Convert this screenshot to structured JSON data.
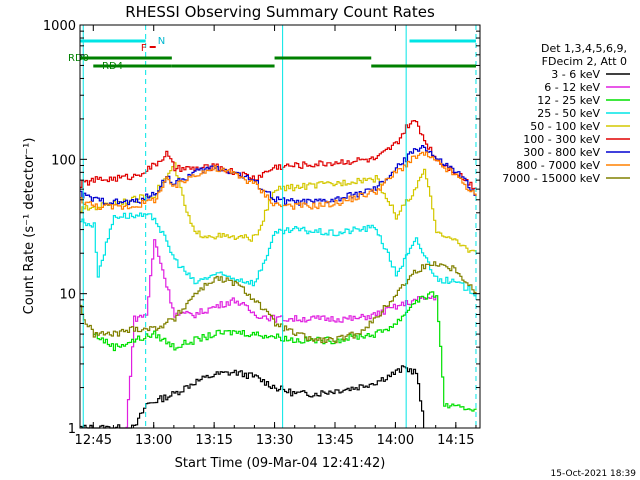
{
  "chart_data": {
    "type": "line",
    "title": "RHESSI Observing Summary Count Rates",
    "xlabel": "Start Time (09-Mar-04 12:41:42)",
    "ylabel": "Count Rate (s⁻¹ detector⁻¹)",
    "yscale": "log",
    "ylim": [
      1,
      1000
    ],
    "xlim": [
      "12:41:42",
      "14:21:00"
    ],
    "x_ticks": [
      "12:45",
      "13:00",
      "13:15",
      "13:30",
      "13:45",
      "14:00",
      "14:15"
    ],
    "y_ticks": [
      "1",
      "10",
      "100",
      "1000"
    ],
    "legend_header": [
      "Det 1,3,4,5,6,9,",
      "FDecim 2, Att 0"
    ],
    "legend_placement": "right",
    "timestamp": "15-Oct-2021 18:39",
    "series": [
      {
        "name": "3 - 6 keV",
        "color": "#000000",
        "times": [
          "12:41:42",
          "12:55",
          "12:58",
          "13:05",
          "13:10",
          "13:15",
          "13:20",
          "13:25",
          "13:30",
          "13:35",
          "13:40",
          "13:45",
          "13:50",
          "13:55",
          "14:00",
          "14:02",
          "14:05",
          "14:07"
        ],
        "values": [
          1,
          1,
          1.5,
          1.8,
          2.2,
          2.5,
          2.6,
          2.4,
          2,
          1.8,
          1.8,
          1.9,
          2,
          2.2,
          2.6,
          2.8,
          2.6,
          1
        ]
      },
      {
        "name": "6 - 12 keV",
        "color": "#e020e0",
        "times": [
          "12:53",
          "12:55",
          "12:58",
          "13:00",
          "13:05",
          "13:10",
          "13:15",
          "13:20",
          "13:25",
          "13:30",
          "13:35",
          "13:40",
          "13:45",
          "13:50",
          "13:55",
          "14:00",
          "14:05",
          "14:10"
        ],
        "values": [
          1,
          6.5,
          7,
          25,
          7,
          7,
          8,
          9,
          7,
          6.5,
          6.5,
          6.5,
          6.5,
          6.5,
          7,
          8,
          9,
          9.5
        ]
      },
      {
        "name": "12 - 25 keV",
        "color": "#00e000",
        "times": [
          "12:45",
          "12:50",
          "12:55",
          "13:00",
          "13:05",
          "13:10",
          "13:15",
          "13:20",
          "13:25",
          "13:30",
          "13:35",
          "13:40",
          "13:45",
          "13:50",
          "13:55",
          "14:00",
          "14:05",
          "14:10",
          "14:12",
          "14:15",
          "14:20"
        ],
        "values": [
          5,
          4,
          4.5,
          5,
          4,
          4.5,
          5,
          5.2,
          5,
          4.8,
          4.5,
          4.5,
          4.5,
          4.8,
          5,
          6,
          9,
          10,
          1.5,
          1.4,
          1.4
        ]
      },
      {
        "name": "25 - 50 keV",
        "color": "#00e5e5",
        "times": [
          "12:41:42",
          "12:45",
          "12:46",
          "12:50",
          "12:55",
          "13:00",
          "13:05",
          "13:10",
          "13:15",
          "13:20",
          "13:25",
          "13:30",
          "13:35",
          "13:40",
          "13:45",
          "13:50",
          "13:55",
          "14:00",
          "14:05",
          "14:10",
          "14:15",
          "14:20"
        ],
        "values": [
          35,
          32,
          14,
          38,
          38,
          37,
          18,
          12,
          14,
          13,
          12,
          28,
          30,
          29,
          28,
          30,
          31,
          14,
          25,
          13,
          12,
          10
        ]
      },
      {
        "name": "50 - 100 keV",
        "color": "#d4c800",
        "times": [
          "12:41:42",
          "12:45",
          "12:50",
          "12:55",
          "13:00",
          "13:05",
          "13:08",
          "13:10",
          "13:15",
          "13:20",
          "13:25",
          "13:30",
          "13:35",
          "13:40",
          "13:45",
          "13:50",
          "13:55",
          "14:00",
          "14:05",
          "14:07",
          "14:10",
          "14:15",
          "14:20"
        ],
        "values": [
          42,
          44,
          48,
          50,
          55,
          90,
          40,
          28,
          27,
          26,
          26,
          60,
          62,
          64,
          66,
          70,
          72,
          38,
          60,
          85,
          30,
          24,
          20
        ]
      },
      {
        "name": "100 - 300 keV",
        "color": "#e00000",
        "times": [
          "12:41:42",
          "12:45",
          "12:50",
          "12:55",
          "13:00",
          "13:03",
          "13:05",
          "13:10",
          "13:15",
          "13:20",
          "13:25",
          "13:30",
          "13:35",
          "13:40",
          "13:45",
          "13:50",
          "13:55",
          "14:00",
          "14:03",
          "14:05",
          "14:07",
          "14:10",
          "14:15",
          "14:20"
        ],
        "values": [
          65,
          70,
          72,
          75,
          90,
          110,
          85,
          85,
          88,
          80,
          72,
          88,
          90,
          92,
          95,
          98,
          100,
          130,
          180,
          190,
          140,
          100,
          80,
          60
        ]
      },
      {
        "name": "300 - 800 keV",
        "color": "#0000d0",
        "times": [
          "12:41:42",
          "12:45",
          "12:50",
          "12:55",
          "13:00",
          "13:03",
          "13:05",
          "13:10",
          "13:15",
          "13:20",
          "13:25",
          "13:30",
          "13:35",
          "13:40",
          "13:45",
          "13:50",
          "13:55",
          "14:00",
          "14:05",
          "14:07",
          "14:10",
          "14:15",
          "14:20"
        ],
        "values": [
          55,
          50,
          48,
          48,
          55,
          75,
          65,
          80,
          88,
          80,
          68,
          50,
          48,
          48,
          50,
          55,
          60,
          85,
          120,
          125,
          100,
          80,
          55
        ]
      },
      {
        "name": "800 - 7000 keV",
        "color": "#ff8000",
        "times": [
          "12:41:42",
          "12:45",
          "12:50",
          "12:55",
          "13:00",
          "13:03",
          "13:05",
          "13:10",
          "13:15",
          "13:20",
          "13:25",
          "13:30",
          "13:35",
          "13:40",
          "13:45",
          "13:50",
          "13:55",
          "14:00",
          "14:05",
          "14:07",
          "14:10",
          "14:15",
          "14:20"
        ],
        "values": [
          50,
          45,
          44,
          45,
          50,
          70,
          62,
          78,
          85,
          78,
          65,
          46,
          45,
          45,
          47,
          52,
          58,
          80,
          105,
          110,
          95,
          75,
          52
        ]
      },
      {
        "name": "7000 - 15000 keV",
        "color": "#808000",
        "times": [
          "12:41:42",
          "12:43",
          "12:45",
          "12:50",
          "12:55",
          "13:00",
          "13:05",
          "13:10",
          "13:15",
          "13:20",
          "13:25",
          "13:30",
          "13:35",
          "13:40",
          "13:45",
          "13:50",
          "13:55",
          "14:00",
          "14:05",
          "14:10",
          "14:15",
          "14:20"
        ],
        "values": [
          8,
          6,
          5,
          5,
          5.5,
          5.5,
          6.5,
          10,
          13,
          12,
          9,
          6,
          5,
          4.5,
          4.5,
          5,
          6.5,
          10,
          15,
          17,
          15,
          10
        ]
      }
    ],
    "segments": {
      "attenuator": {
        "color": "#00e5e5",
        "intervals": [
          [
            "12:41:42",
            "12:58:00"
          ],
          [
            "14:03:30",
            "14:20:00"
          ]
        ]
      },
      "dashed_lines": {
        "color": "#00e5e5",
        "times": [
          "12:58:00",
          "14:20:00"
        ]
      },
      "solid_lines": {
        "color": "#00e5e5",
        "times": [
          "12:42:30",
          "13:32:00",
          "14:02:40"
        ]
      },
      "flare_marker": {
        "label": "F",
        "color": "#e00000",
        "interval": [
          "12:59:00",
          "13:00:30"
        ]
      },
      "n_label": {
        "label": "N",
        "color": "#00b8d0"
      },
      "rd0": {
        "label": "RD0",
        "color": "#008000",
        "intervals": [
          [
            "12:41:42",
            "13:04:30"
          ],
          [
            "13:30:00",
            "13:54:00"
          ]
        ]
      },
      "rd4": {
        "label": "RD4",
        "color": "#008000",
        "intervals": [
          [
            "12:45:00",
            "13:04:30"
          ],
          [
            "13:04:30",
            "13:30:00"
          ],
          [
            "13:54:00",
            "14:20:00"
          ]
        ]
      }
    }
  }
}
